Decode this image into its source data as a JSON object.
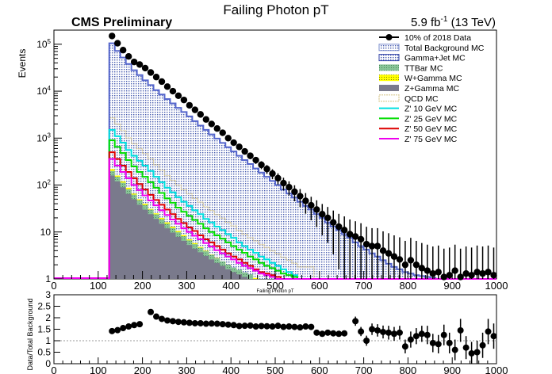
{
  "chart_data": {
    "type": "bar",
    "title": "Failing Photon pT",
    "header_left": "CMS Preliminary",
    "lumi_value": "5.9 fb",
    "lumi_exp": "-1",
    "lumi_energy": " (13 TeV)",
    "xlabel": "Failing Photon pT",
    "ylabel": "Events",
    "ratio_ylabel": "Data/Total Background",
    "xlim": [
      0,
      1000
    ],
    "ylim_log": [
      1,
      200000
    ],
    "log_y": true,
    "ratio_ylim": [
      0,
      3
    ],
    "x_ticks": [
      "0",
      "100",
      "200",
      "300",
      "400",
      "500",
      "600",
      "700",
      "800",
      "900",
      "1000"
    ],
    "y_ticks": [
      {
        "base": "10",
        "exp": "5",
        "v": 100000
      },
      {
        "base": "10",
        "exp": "4",
        "v": 10000
      },
      {
        "base": "10",
        "exp": "3",
        "v": 1000
      },
      {
        "base": "10",
        "exp": "2",
        "v": 100
      },
      {
        "base": "10",
        "exp": "",
        "v": 10
      },
      {
        "base": "1",
        "exp": "",
        "v": 1
      }
    ],
    "ratio_y_ticks": [
      "3",
      "2.5",
      "2",
      "1.5",
      "1",
      "0.5",
      "0"
    ],
    "legend_placement": "top-right",
    "legend": [
      {
        "label": "10% of 2018 Data",
        "style": "data"
      },
      {
        "label": "Total Background MC",
        "style": "total"
      },
      {
        "label": "Gamma+Jet MC",
        "style": "gjet"
      },
      {
        "label": "TTBar MC",
        "style": "ttbar"
      },
      {
        "label": "W+Gamma MC",
        "style": "wgamma"
      },
      {
        "label": "Z+Gamma MC",
        "style": "zgamma"
      },
      {
        "label": "QCD MC",
        "style": "qcd"
      },
      {
        "label": "Z' 10 GeV MC",
        "style": "z10"
      },
      {
        "label": "Z' 25 GeV MC",
        "style": "z25"
      },
      {
        "label": "Z' 50 GeV MC",
        "style": "z50"
      },
      {
        "label": "Z' 75 GeV MC",
        "style": "z75"
      }
    ],
    "colors": {
      "total": "#b8c4e6",
      "total_line": "#5566cc",
      "gjet": "#3344aa",
      "ttbar": "#77bb88",
      "wgamma": "#ffff00",
      "zgamma": "#7a7a8c",
      "qcd": "#d8c890",
      "z10": "#00e0e0",
      "z25": "#00dd00",
      "z50": "#dd0000",
      "z75": "#ee00ee",
      "data": "#000000"
    },
    "bin_edges_start": 125,
    "bin_width": 12.5,
    "data_x": [
      125,
      137.5,
      150,
      162.5,
      175,
      187.5,
      200,
      212.5,
      225,
      237.5,
      250,
      262.5,
      275,
      287.5,
      300,
      312.5,
      325,
      337.5,
      350,
      362.5,
      375,
      387.5,
      400,
      412.5,
      425,
      437.5,
      450,
      462.5,
      475,
      487.5,
      500,
      512.5,
      525,
      537.5,
      550,
      562.5,
      575,
      587.5,
      600,
      612.5,
      625,
      637.5,
      650,
      662.5,
      675,
      687.5,
      700,
      712.5,
      725,
      737.5,
      750,
      762.5,
      775,
      787.5,
      800,
      812.5,
      825,
      837.5,
      850,
      862.5,
      875,
      887.5,
      900,
      912.5,
      925,
      937.5,
      950,
      962.5,
      975,
      987.5
    ],
    "data_y": [
      150000,
      105000,
      75000,
      55000,
      42000,
      37000,
      31000,
      25000,
      20000,
      16000,
      12500,
      10000,
      8000,
      6500,
      5000,
      4000,
      3200,
      2500,
      2000,
      1600,
      1300,
      1000,
      800,
      650,
      520,
      420,
      340,
      270,
      220,
      175,
      140,
      110,
      90,
      72,
      58,
      46,
      37,
      30,
      24,
      20,
      16,
      13,
      11,
      9,
      8,
      7,
      5.5,
      5,
      5,
      4,
      3.5,
      3,
      2.6,
      2,
      2.5,
      2,
      1.7,
      1.5,
      1.3,
      1.4,
      1.1,
      1.2,
      1.5,
      1.1,
      1.3,
      1.2,
      1.4,
      1.3,
      1.4,
      1.2
    ],
    "total_bkg": [
      105000,
      72000,
      52000,
      38000,
      28000,
      22000,
      17000,
      13500,
      10500,
      8500,
      6800,
      5500,
      4400,
      3600,
      2900,
      2300,
      1850,
      1500,
      1200,
      980,
      790,
      640,
      520,
      420,
      340,
      280,
      225,
      185,
      150,
      122,
      100,
      80,
      66,
      54,
      44,
      36,
      30,
      24,
      20,
      16,
      13,
      11,
      9,
      7.5,
      6,
      5,
      4.2,
      3.5,
      3,
      2.5,
      2.1,
      1.8,
      1.6,
      1.4,
      1.3,
      1.2,
      1.15,
      1.1,
      1.05,
      1.0,
      1.0,
      1.0,
      1.0,
      1.0,
      1.0,
      1.0,
      1.0,
      1.0,
      1.0,
      1.0
    ],
    "z10": [
      1500,
      1100,
      800,
      560,
      420,
      330,
      260,
      200,
      150,
      115,
      88,
      70,
      55,
      44,
      36,
      29,
      24,
      19,
      16,
      13,
      11,
      9,
      7.5,
      6,
      5,
      4.2,
      3.6,
      3,
      2.6,
      2.2,
      1.9,
      1.6,
      1.4,
      1.2,
      1,
      1,
      1,
      0,
      0,
      0,
      0,
      0,
      0,
      0,
      0,
      0,
      0,
      0,
      0,
      0,
      0,
      0,
      0,
      0,
      0,
      0,
      0,
      0,
      0,
      0,
      0,
      0,
      0,
      0,
      0,
      0,
      0,
      0,
      0,
      0
    ],
    "z25": [
      900,
      650,
      480,
      340,
      250,
      190,
      150,
      115,
      88,
      68,
      52,
      42,
      33,
      27,
      22,
      18,
      15,
      12,
      10,
      8.5,
      7.2,
      6,
      5,
      4.2,
      3.6,
      3,
      2.6,
      2.2,
      1.9,
      1.7,
      1.5,
      1.3,
      1.2,
      1.1,
      1,
      0,
      0,
      0,
      0,
      0,
      0,
      0,
      0,
      0,
      0,
      0,
      0,
      0,
      0,
      0,
      0,
      0,
      0,
      0,
      0,
      0,
      0,
      0,
      0,
      0,
      0,
      0,
      0,
      0,
      0,
      0,
      0,
      0,
      0,
      0
    ],
    "z50": [
      500,
      360,
      260,
      190,
      140,
      105,
      80,
      62,
      48,
      38,
      30,
      24,
      19,
      15.5,
      12.5,
      10.5,
      8.5,
      7,
      6,
      5,
      4.2,
      3.5,
      3,
      2.6,
      2.2,
      1.9,
      1.6,
      1.4,
      1.3,
      1.2,
      1.1,
      1,
      0,
      0,
      0,
      0,
      0,
      0,
      0,
      0,
      0,
      0,
      0,
      0,
      0,
      0,
      0,
      0,
      0,
      0,
      0,
      0,
      0,
      0,
      0,
      0,
      0,
      0,
      0,
      0,
      0,
      0,
      0,
      0,
      0,
      0,
      0,
      0,
      0,
      0
    ],
    "z75": [
      360,
      260,
      190,
      140,
      100,
      78,
      60,
      47,
      37,
      29,
      23,
      18.5,
      15,
      12,
      10,
      8.3,
      7,
      5.8,
      4.9,
      4.1,
      3.5,
      3,
      2.6,
      2.2,
      1.9,
      1.7,
      1.5,
      1.3,
      1.2,
      1.1,
      1,
      0,
      0,
      0,
      0,
      0,
      0,
      0,
      0,
      0,
      0,
      0,
      0,
      0,
      0,
      0,
      0,
      0,
      0,
      0,
      0,
      0,
      0,
      0,
      0,
      0,
      0,
      0,
      0,
      0,
      0,
      0,
      0,
      0,
      0,
      0,
      0,
      0,
      0,
      0
    ],
    "wgamma": [
      220,
      160,
      120,
      88,
      66,
      50,
      40,
      31,
      25,
      20,
      16,
      13,
      10.5,
      8.6,
      7,
      5.8,
      4.8,
      4,
      3.3,
      2.8,
      2.3,
      2,
      1.7,
      1.5,
      1.3,
      1.15,
      1.05,
      1,
      0,
      0,
      0,
      0,
      0,
      0,
      0,
      0,
      0,
      0,
      0,
      0,
      0,
      0,
      0,
      0,
      0,
      0,
      0,
      0,
      0,
      0,
      0,
      0,
      0,
      0,
      0,
      0,
      0,
      0,
      0,
      0,
      0,
      0,
      0,
      0,
      0,
      0,
      0,
      0,
      0,
      0
    ],
    "zgamma": [
      160,
      120,
      90,
      65,
      50,
      38,
      30,
      24,
      19,
      15,
      12,
      9.7,
      7.9,
      6.5,
      5.3,
      4.4,
      3.7,
      3.1,
      2.6,
      2.2,
      1.9,
      1.6,
      1.4,
      1.25,
      1.1,
      1,
      0,
      0,
      0,
      0,
      0,
      0,
      0,
      0,
      0,
      0,
      0,
      0,
      0,
      0,
      0,
      0,
      0,
      0,
      0,
      0,
      0,
      0,
      0,
      0,
      0,
      0,
      0,
      0,
      0,
      0,
      0,
      0,
      0,
      0,
      0,
      0,
      0,
      0,
      0,
      0,
      0,
      0,
      0,
      0
    ],
    "ratio_x": [
      125,
      137.5,
      150,
      162.5,
      175,
      187.5,
      212.5,
      225,
      237.5,
      250,
      262.5,
      275,
      287.5,
      300,
      312.5,
      325,
      337.5,
      350,
      362.5,
      375,
      387.5,
      400,
      412.5,
      425,
      437.5,
      450,
      462.5,
      475,
      487.5,
      500,
      512.5,
      525,
      537.5,
      550,
      562.5,
      575,
      587.5,
      600,
      612.5,
      625,
      637.5,
      650,
      675,
      687.5,
      700,
      712.5,
      725,
      737.5,
      750,
      762.5,
      775,
      787.5,
      800,
      812.5,
      825,
      837.5,
      850,
      862.5,
      875,
      887.5,
      900,
      912.5,
      925,
      937.5,
      950,
      962.5,
      975,
      987.5
    ],
    "ratio_y": [
      1.42,
      1.46,
      1.55,
      1.62,
      1.68,
      1.72,
      2.25,
      2.05,
      1.95,
      1.88,
      1.85,
      1.82,
      1.8,
      1.78,
      1.76,
      1.76,
      1.74,
      1.75,
      1.74,
      1.72,
      1.7,
      1.68,
      1.64,
      1.65,
      1.66,
      1.62,
      1.64,
      1.63,
      1.62,
      1.65,
      1.6,
      1.62,
      1.6,
      1.58,
      1.62,
      1.6,
      1.35,
      1.3,
      1.35,
      1.32,
      1.3,
      1.32,
      1.85,
      1.4,
      1.0,
      1.5,
      1.45,
      1.38,
      1.35,
      1.3,
      1.35,
      0.75,
      1.05,
      1.2,
      1.3,
      1.25,
      0.9,
      0.85,
      1.25,
      0.9,
      0.6,
      1.45,
      0.7,
      0.45,
      0.5,
      0.8,
      1.4,
      1.2
    ],
    "ratio_err": [
      0.05,
      0.05,
      0.05,
      0.05,
      0.05,
      0.05,
      0.06,
      0.06,
      0.06,
      0.06,
      0.06,
      0.06,
      0.06,
      0.06,
      0.06,
      0.06,
      0.06,
      0.06,
      0.06,
      0.06,
      0.06,
      0.07,
      0.07,
      0.07,
      0.07,
      0.07,
      0.07,
      0.07,
      0.08,
      0.08,
      0.08,
      0.08,
      0.09,
      0.09,
      0.09,
      0.1,
      0.1,
      0.1,
      0.11,
      0.11,
      0.12,
      0.12,
      0.2,
      0.2,
      0.22,
      0.25,
      0.27,
      0.28,
      0.3,
      0.3,
      0.3,
      0.3,
      0.35,
      0.35,
      0.35,
      0.4,
      0.4,
      0.4,
      0.45,
      0.45,
      0.45,
      0.5,
      0.5,
      0.5,
      0.5,
      0.55,
      0.55,
      0.55
    ]
  }
}
